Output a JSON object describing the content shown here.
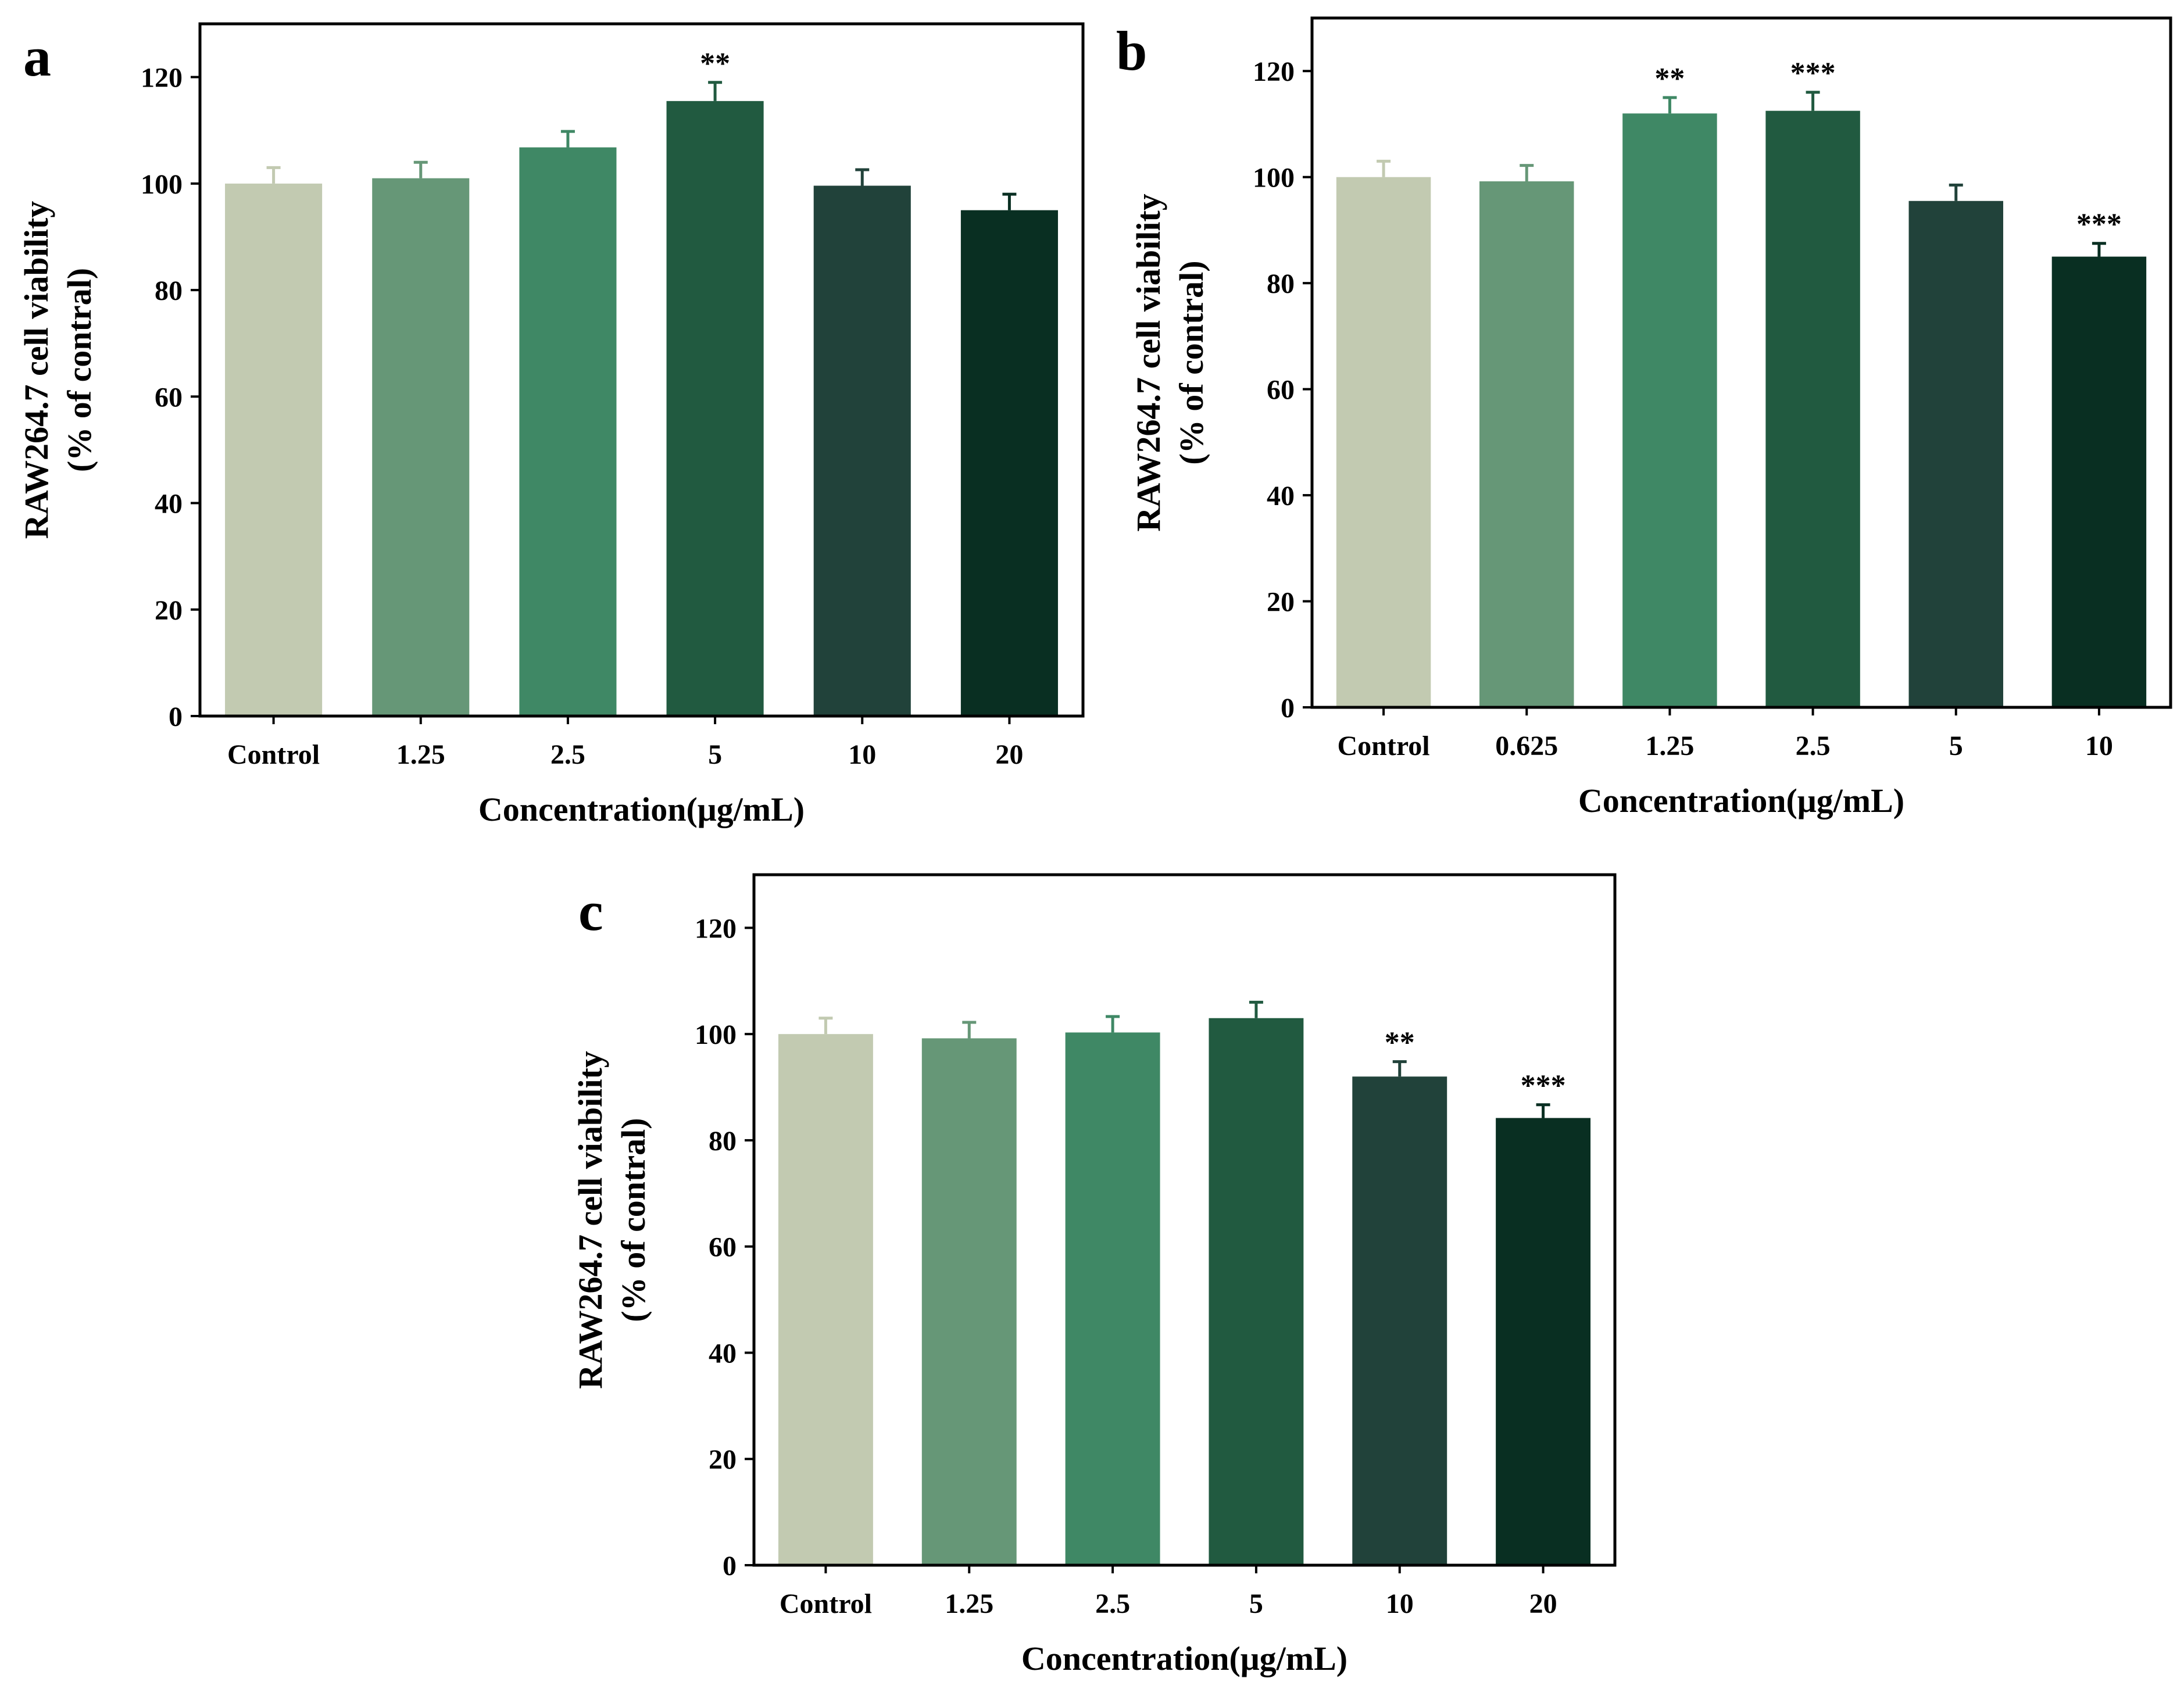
{
  "chart_data": [
    {
      "type": "bar",
      "panel": "a",
      "ylabel_line1": "RAW264.7 cell viability",
      "ylabel_line2": "(% of contral)",
      "xlabel": "Concentration(μg/mL)",
      "ylim": [
        0,
        130
      ],
      "yticks": [
        0,
        20,
        40,
        60,
        80,
        100,
        120
      ],
      "categories": [
        "Control",
        "1.25",
        "2.5",
        "5",
        "10",
        "20"
      ],
      "values": [
        100,
        101,
        106.8,
        115.5,
        99.6,
        95
      ],
      "errors": [
        3,
        3,
        3,
        3.5,
        3,
        3
      ],
      "significance": [
        "",
        "",
        "",
        "**",
        "",
        ""
      ],
      "colors": [
        "#c2cab1",
        "#669777",
        "#3f8865",
        "#215a40",
        "#21423a",
        "#092f22"
      ],
      "error_colors": [
        "#c2cab1",
        "#669777",
        "#3f8865",
        "#215a40",
        "#21423a",
        "#092f22"
      ],
      "grid": false
    },
    {
      "type": "bar",
      "panel": "b",
      "ylabel_line1": "RAW264.7 cell viability",
      "ylabel_line2": "(% of contral)",
      "xlabel": "Concentration(μg/mL)",
      "ylim": [
        0,
        130
      ],
      "yticks": [
        0,
        20,
        40,
        60,
        80,
        100,
        120
      ],
      "categories": [
        "Control",
        "0.625",
        "1.25",
        "2.5",
        "5",
        "10"
      ],
      "values": [
        100,
        99.2,
        112,
        112.5,
        95.5,
        85
      ],
      "errors": [
        3,
        3,
        3,
        3.5,
        3,
        2.5
      ],
      "significance": [
        "",
        "",
        "**",
        "***",
        "",
        "***"
      ],
      "colors": [
        "#c2cab1",
        "#669777",
        "#3f8865",
        "#215a40",
        "#21423a",
        "#092f22"
      ],
      "error_colors": [
        "#c2cab1",
        "#669777",
        "#3f8865",
        "#215a40",
        "#21423a",
        "#092f22"
      ],
      "grid": false
    },
    {
      "type": "bar",
      "panel": "c",
      "ylabel_line1": "RAW264.7 cell viability",
      "ylabel_line2": "(% of contral)",
      "xlabel": "Concentration(μg/mL)",
      "ylim": [
        0,
        130
      ],
      "yticks": [
        0,
        20,
        40,
        60,
        80,
        100,
        120
      ],
      "categories": [
        "Control",
        "1.25",
        "2.5",
        "5",
        "10",
        "20"
      ],
      "values": [
        100,
        99.2,
        100.3,
        103,
        92,
        84.2
      ],
      "errors": [
        3,
        3,
        3,
        3,
        2.8,
        2.5
      ],
      "significance": [
        "",
        "",
        "",
        "",
        "**",
        "***"
      ],
      "colors": [
        "#c2cab1",
        "#669777",
        "#3f8865",
        "#215a40",
        "#21423a",
        "#092f22"
      ],
      "error_colors": [
        "#c2cab1",
        "#669777",
        "#3f8865",
        "#215a40",
        "#21423a",
        "#092f22"
      ],
      "grid": false
    }
  ]
}
